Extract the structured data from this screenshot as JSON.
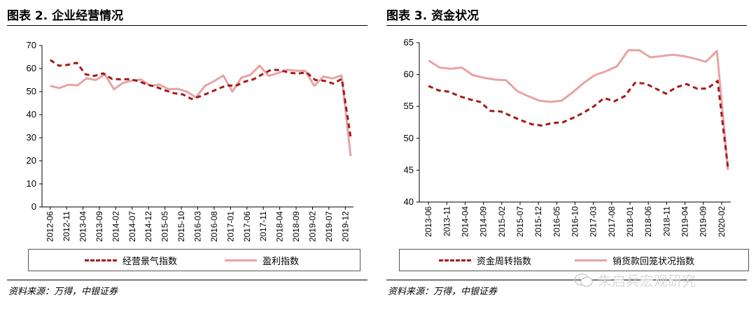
{
  "charts": [
    {
      "figure_title": "图表 2. 企业经营情况",
      "source": "资料来源：万得，中银证券"
    },
    {
      "figure_title": "图表 3. 资金状况",
      "source": "资料来源：万得，中银证券"
    }
  ],
  "watermark": "朱启兵宏观研究",
  "colors": {
    "dark_red": "#a5191b",
    "pink": "#e7a3a3",
    "axis": "#000000"
  },
  "chart_data": [
    {
      "type": "line",
      "title": "图表 2. 企业经营情况",
      "xlabel": "",
      "ylabel": "",
      "ylim": [
        0,
        70
      ],
      "yticks": [
        0,
        10,
        20,
        30,
        40,
        50,
        60,
        70
      ],
      "x_ticks": [
        "2012-06",
        "2012-11",
        "2013-04",
        "2013-09",
        "2014-02",
        "2014-07",
        "2014-12",
        "2015-05",
        "2015-10",
        "2016-03",
        "2016-08",
        "2017-01",
        "2017-06",
        "2017-11",
        "2018-04",
        "2018-09",
        "2019-02",
        "2019-07",
        "2019-12"
      ],
      "series": [
        {
          "name": "经营景气指数",
          "color": "#a5191b",
          "style": "dashed",
          "values": [
            63.7,
            61.2,
            61.6,
            62.5,
            57.5,
            56.8,
            57.9,
            55.5,
            55.3,
            55.4,
            54.5,
            53.0,
            52.0,
            50.5,
            49.3,
            48.8,
            46.8,
            48.0,
            49.5,
            51.2,
            52.7,
            52.5,
            54.3,
            55.3,
            57.5,
            59.5,
            59.3,
            58.2,
            57.8,
            58.3,
            55.0,
            54.7,
            53.5,
            55.5,
            30.0
          ]
        },
        {
          "name": "盈利指数",
          "color": "#e7a3a3",
          "style": "solid",
          "values": [
            52.5,
            51.5,
            53.0,
            52.7,
            55.8,
            55.0,
            57.5,
            51.0,
            53.8,
            54.8,
            55.2,
            52.5,
            53.0,
            51.0,
            51.2,
            50.0,
            47.5,
            52.5,
            54.5,
            57.0,
            50.0,
            56.0,
            57.3,
            61.2,
            56.8,
            58.0,
            59.5,
            59.0,
            59.0,
            52.5,
            56.5,
            55.7,
            57.0,
            22.0
          ]
        }
      ]
    },
    {
      "type": "line",
      "title": "图表 3. 资金状况",
      "xlabel": "",
      "ylabel": "",
      "ylim": [
        40,
        65
      ],
      "yticks": [
        40,
        45,
        50,
        55,
        60,
        65
      ],
      "x_ticks": [
        "2013-06",
        "2013-11",
        "2014-04",
        "2014-09",
        "2015-02",
        "2015-07",
        "2015-12",
        "2016-05",
        "2016-10",
        "2017-03",
        "2017-08",
        "2018-01",
        "2018-06",
        "2018-11",
        "2019-04",
        "2019-09",
        "2020-02"
      ],
      "series": [
        {
          "name": "资金周转指数",
          "color": "#a5191b",
          "style": "dashed",
          "values": [
            58.2,
            57.5,
            57.3,
            56.6,
            56.1,
            55.7,
            54.3,
            54.2,
            53.5,
            52.8,
            52.2,
            52.0,
            52.4,
            52.5,
            53.2,
            54.0,
            55.0,
            56.3,
            55.8,
            56.6,
            58.7,
            58.6,
            57.8,
            57.0,
            58.0,
            58.5,
            57.8,
            57.8,
            59.0,
            45.3
          ]
        },
        {
          "name": "销货款回笼状况指数",
          "color": "#e7a3a3",
          "style": "solid",
          "values": [
            62.2,
            61.1,
            60.9,
            61.1,
            59.9,
            59.5,
            59.2,
            59.1,
            57.4,
            56.6,
            55.9,
            55.7,
            55.9,
            57.2,
            58.7,
            59.9,
            60.5,
            61.3,
            63.8,
            63.8,
            62.7,
            62.9,
            63.1,
            62.9,
            62.5,
            62.0,
            63.7,
            45.0
          ]
        }
      ]
    }
  ]
}
